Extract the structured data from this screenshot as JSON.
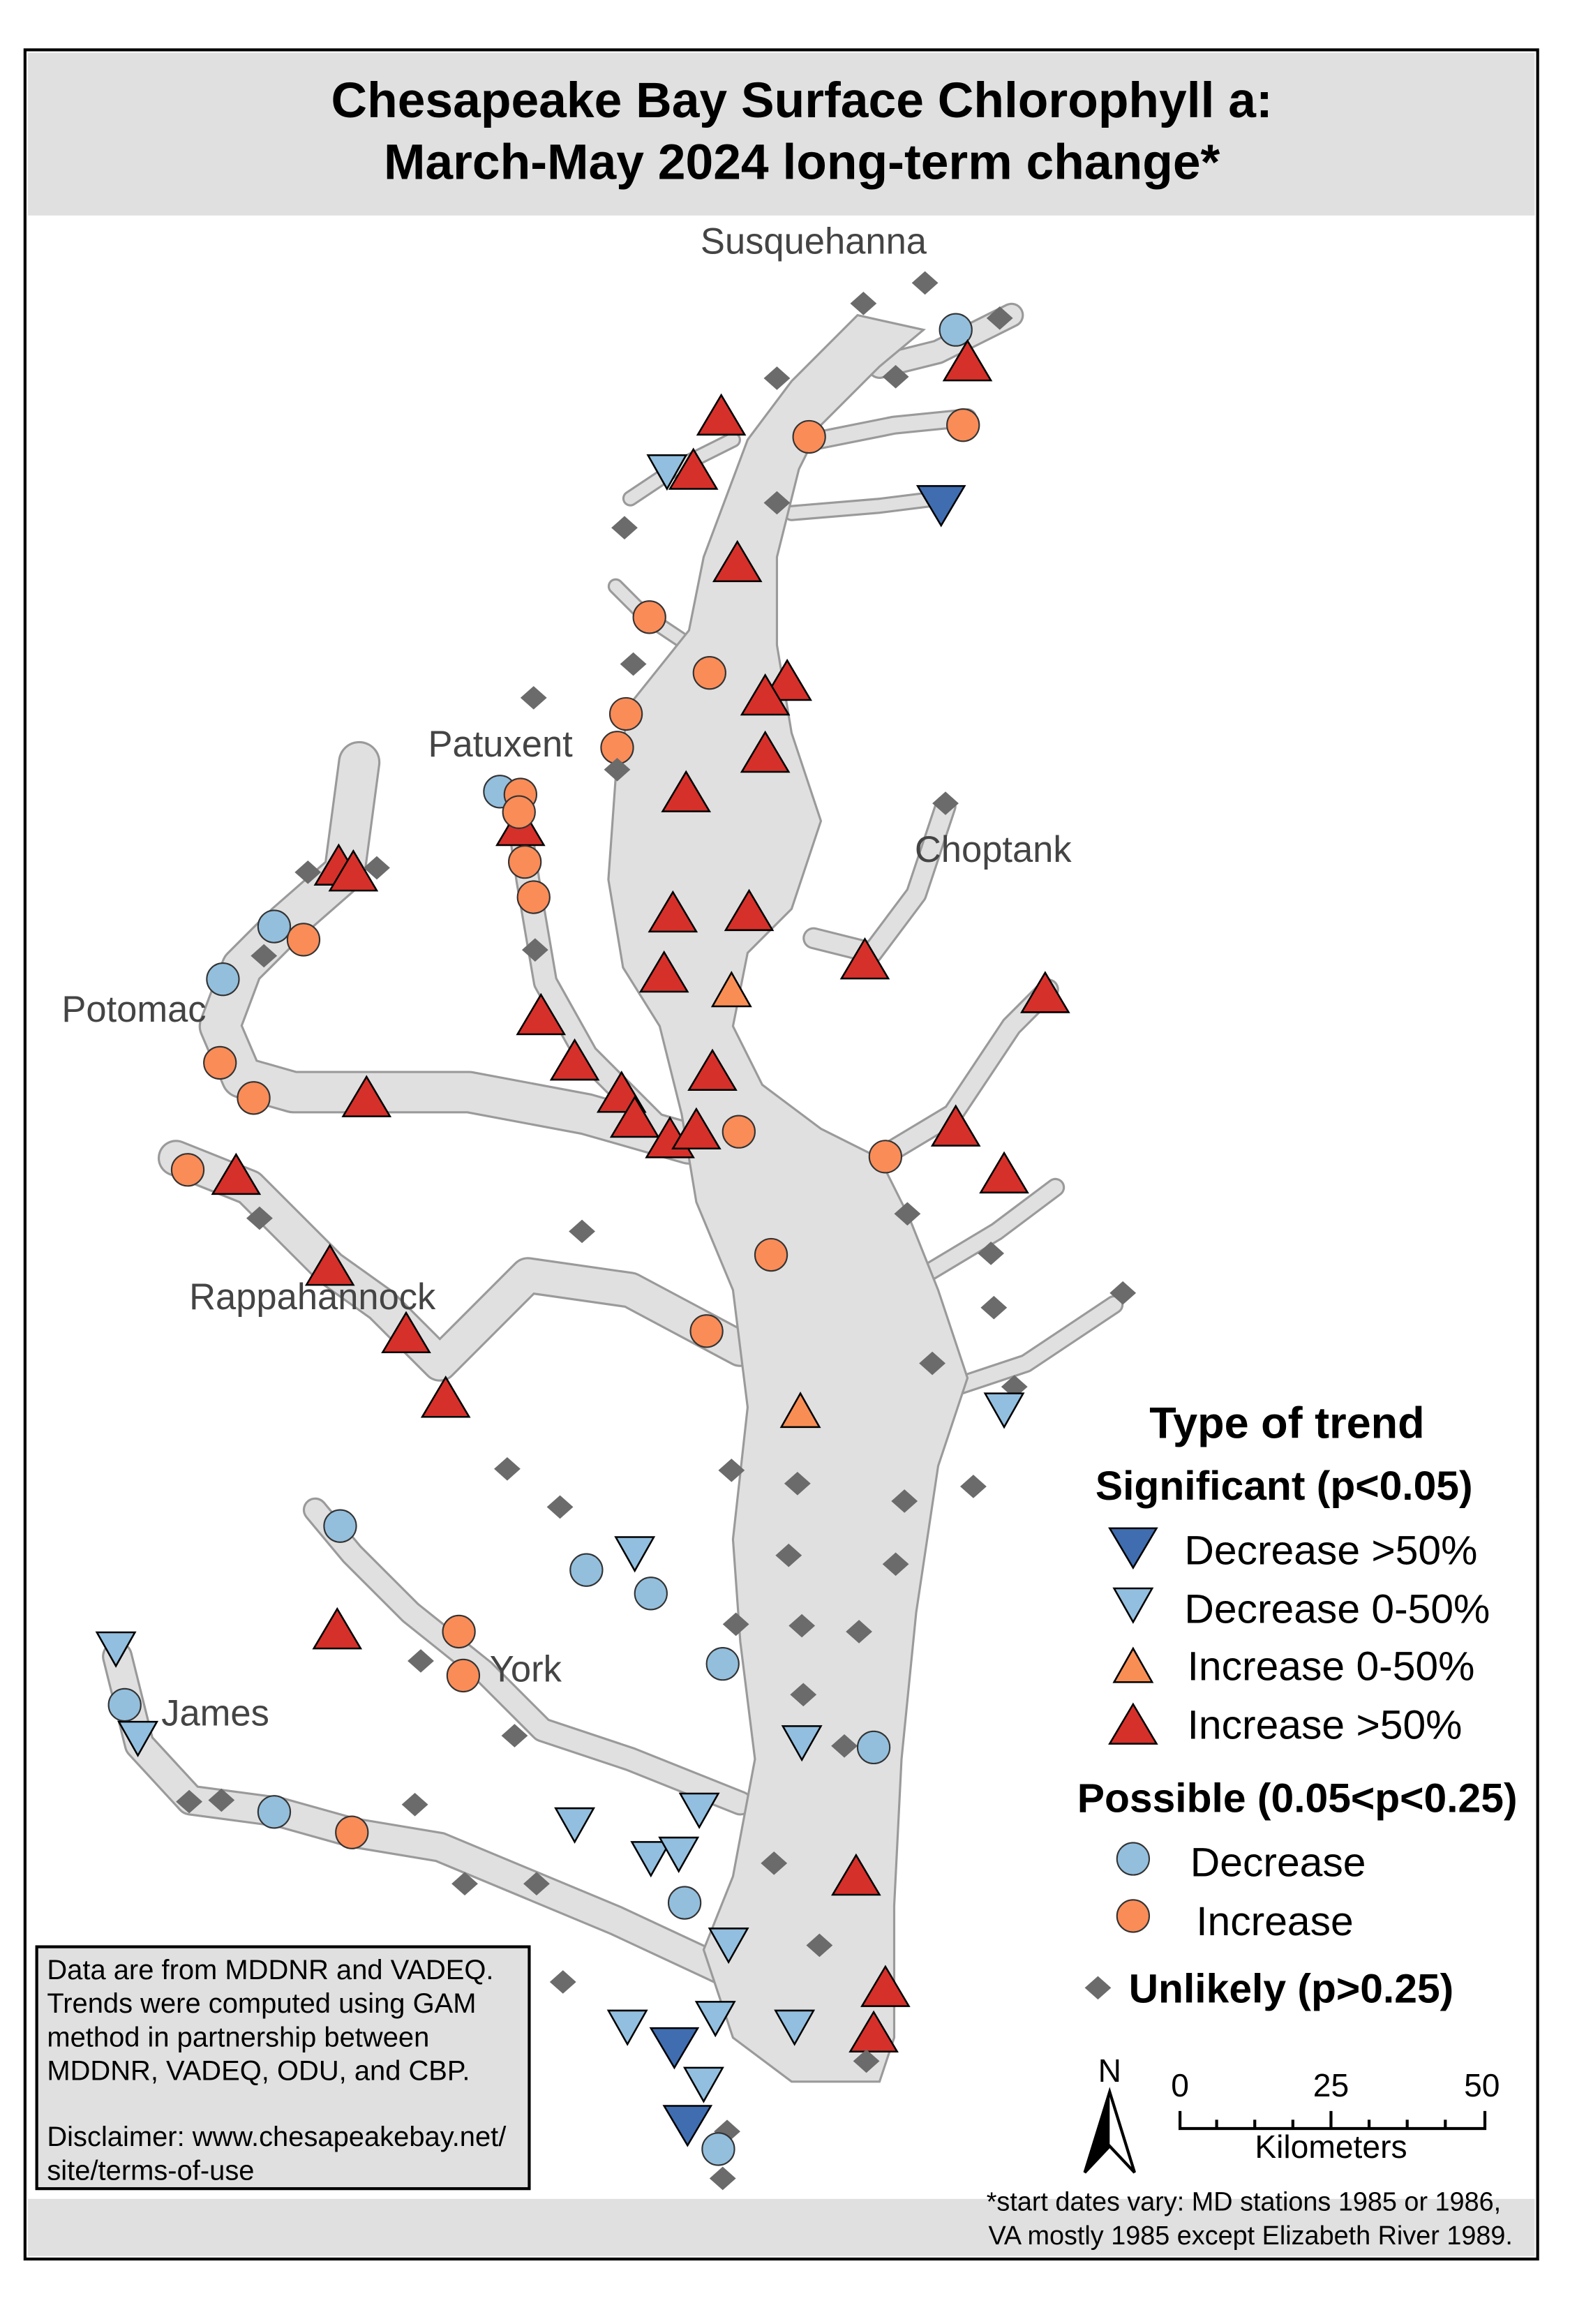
{
  "title": {
    "line1": "Chesapeake Bay Surface Chlorophyll a:",
    "line2": "March-May 2024 long-term change*"
  },
  "rivers": [
    "Susquehanna",
    "Patuxent",
    "Choptank",
    "Potomac",
    "Rappahannock",
    "York",
    "James"
  ],
  "legend": {
    "heading": "Type of trend",
    "significant": "Significant (p<0.05)",
    "possible": "Possible (0.05<p<0.25)",
    "unlikely": "Unlikely (p>0.25)",
    "items": {
      "D2": "Decrease >50%",
      "D1": "Decrease 0-50%",
      "I1": "Increase 0-50%",
      "I2": "Increase >50%",
      "PD": "Decrease",
      "PI": "Increase"
    }
  },
  "colors": {
    "D2": "#3f6db0",
    "D1": "#92bfdf",
    "I1": "#f98e55",
    "I2": "#d6302a",
    "PD": "#93bfdd",
    "PI": "#fa8c58",
    "U": "#6b6b6b",
    "water": "#e0e0e0",
    "shoreline": "#9a9a9a"
  },
  "info_box": {
    "lines": [
      "Data are from MDDNR and VADEQ.",
      "Trends were computed using GAM",
      "method in partnership between",
      "MDDNR, VADEQ, ODU, and CBP."
    ],
    "disclaimer": [
      "Disclaimer: www.chesapeakebay.net/",
      "site/terms-of-use"
    ]
  },
  "scale_bar": {
    "ticks": [
      "0",
      "25",
      "50"
    ],
    "unit": "Kilometers"
  },
  "north_label": "N",
  "footnote": [
    "*start dates vary: MD stations 1985 or 1986,",
    "VA mostly 1985 except Elizabeth River 1989."
  ]
}
